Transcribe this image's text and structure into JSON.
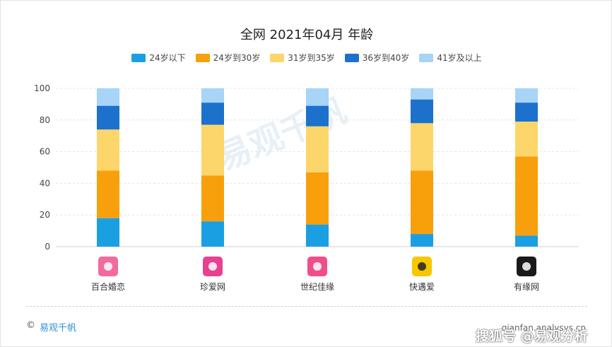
{
  "colors": {
    "series": [
      "#1a9fe3",
      "#f7a00c",
      "#fdd66b",
      "#1c71cd",
      "#a7d4f7"
    ],
    "grid": "#e4e4e4",
    "axis_text": "#444444",
    "brand": "#2f8fd8"
  },
  "chart_data": {
    "type": "bar",
    "stacked": true,
    "title": "全网 2021年04月 年龄",
    "categories": [
      "百合婚恋",
      "珍爱网",
      "世纪佳缘",
      "快遇爱",
      "有缘网"
    ],
    "series": [
      {
        "name": "24岁以下",
        "values": [
          18,
          16,
          14,
          8,
          7
        ]
      },
      {
        "name": "24岁到30岁",
        "values": [
          30,
          29,
          33,
          40,
          50
        ]
      },
      {
        "name": "31岁到35岁",
        "values": [
          26,
          32,
          29,
          30,
          22
        ]
      },
      {
        "name": "36岁到40岁",
        "values": [
          15,
          14,
          13,
          15,
          12
        ]
      },
      {
        "name": "41岁及以上",
        "values": [
          11,
          9,
          11,
          7,
          9
        ]
      }
    ],
    "ylim": [
      0,
      100
    ],
    "yticks": [
      0,
      20,
      40,
      60,
      80,
      100
    ],
    "legend_position": "top",
    "grid": true,
    "category_icons": [
      "baihe-logo-icon",
      "zhenai-logo-icon",
      "jiayuan-logo-icon",
      "kuaiyuai-logo-icon",
      "youyuan-logo-icon"
    ]
  },
  "footer": {
    "copyright": "©",
    "brand": "易观千帆",
    "url": "qianfan.analysys.cn",
    "watermark": "搜狐号 @易观分析"
  },
  "background_watermark": "易观千帆"
}
